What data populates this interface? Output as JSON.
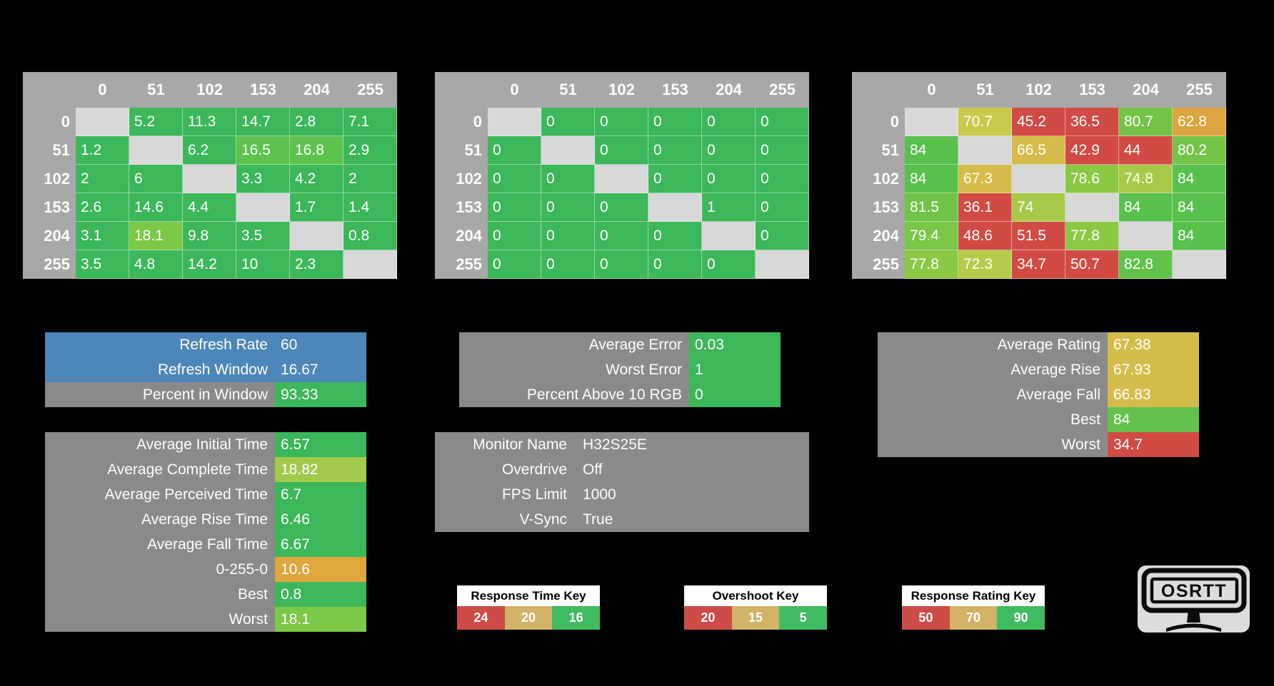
{
  "colors": {
    "background": "#000000",
    "matrix_header_bg": "#a8a8a8",
    "matrix_diagonal_bg": "#d8d8d8",
    "panel_gray": "#8a8a8a",
    "blue": "#4d86b8",
    "green": "#3cb75a",
    "red": "#d14b44",
    "dark_yellow": "#d2b266"
  },
  "chart_data": [
    {
      "type": "heatmap",
      "name": "response-time-matrix",
      "legend": "Response Time Key",
      "columns": [
        "0",
        "51",
        "102",
        "153",
        "204",
        "255"
      ],
      "rows": [
        {
          "label": "0",
          "cells": [
            null,
            {
              "v": "5.2",
              "c": "#3cb75a"
            },
            {
              "v": "11.3",
              "c": "#3cb75a"
            },
            {
              "v": "14.7",
              "c": "#3cb75a"
            },
            {
              "v": "2.8",
              "c": "#3cb75a"
            },
            {
              "v": "7.1",
              "c": "#3cb75a"
            }
          ]
        },
        {
          "label": "51",
          "cells": [
            {
              "v": "1.2",
              "c": "#3cb75a"
            },
            null,
            {
              "v": "6.2",
              "c": "#3cb75a"
            },
            {
              "v": "16.5",
              "c": "#5cc24d"
            },
            {
              "v": "16.8",
              "c": "#5cc24d"
            },
            {
              "v": "2.9",
              "c": "#3cb75a"
            }
          ]
        },
        {
          "label": "102",
          "cells": [
            {
              "v": "2",
              "c": "#3cb75a"
            },
            {
              "v": "6",
              "c": "#3cb75a"
            },
            null,
            {
              "v": "3.3",
              "c": "#3cb75a"
            },
            {
              "v": "4.2",
              "c": "#3cb75a"
            },
            {
              "v": "2",
              "c": "#3cb75a"
            }
          ]
        },
        {
          "label": "153",
          "cells": [
            {
              "v": "2.6",
              "c": "#3cb75a"
            },
            {
              "v": "14.6",
              "c": "#3cb75a"
            },
            {
              "v": "4.4",
              "c": "#3cb75a"
            },
            null,
            {
              "v": "1.7",
              "c": "#3cb75a"
            },
            {
              "v": "1.4",
              "c": "#3cb75a"
            }
          ]
        },
        {
          "label": "204",
          "cells": [
            {
              "v": "3.1",
              "c": "#3cb75a"
            },
            {
              "v": "18.1",
              "c": "#7cc847"
            },
            {
              "v": "9.8",
              "c": "#3cb75a"
            },
            {
              "v": "3.5",
              "c": "#3cb75a"
            },
            null,
            {
              "v": "0.8",
              "c": "#3cb75a"
            }
          ]
        },
        {
          "label": "255",
          "cells": [
            {
              "v": "3.5",
              "c": "#3cb75a"
            },
            {
              "v": "4.8",
              "c": "#3cb75a"
            },
            {
              "v": "14.2",
              "c": "#3cb75a"
            },
            {
              "v": "10",
              "c": "#3cb75a"
            },
            {
              "v": "2.3",
              "c": "#3cb75a"
            },
            null
          ]
        }
      ]
    },
    {
      "type": "heatmap",
      "name": "overshoot-matrix",
      "legend": "Overshoot Key",
      "columns": [
        "0",
        "51",
        "102",
        "153",
        "204",
        "255"
      ],
      "rows": [
        {
          "label": "0",
          "cells": [
            null,
            {
              "v": "0",
              "c": "#3cb75a"
            },
            {
              "v": "0",
              "c": "#3cb75a"
            },
            {
              "v": "0",
              "c": "#3cb75a"
            },
            {
              "v": "0",
              "c": "#3cb75a"
            },
            {
              "v": "0",
              "c": "#3cb75a"
            }
          ]
        },
        {
          "label": "51",
          "cells": [
            {
              "v": "0",
              "c": "#3cb75a"
            },
            null,
            {
              "v": "0",
              "c": "#3cb75a"
            },
            {
              "v": "0",
              "c": "#3cb75a"
            },
            {
              "v": "0",
              "c": "#3cb75a"
            },
            {
              "v": "0",
              "c": "#3cb75a"
            }
          ]
        },
        {
          "label": "102",
          "cells": [
            {
              "v": "0",
              "c": "#3cb75a"
            },
            {
              "v": "0",
              "c": "#3cb75a"
            },
            null,
            {
              "v": "0",
              "c": "#3cb75a"
            },
            {
              "v": "0",
              "c": "#3cb75a"
            },
            {
              "v": "0",
              "c": "#3cb75a"
            }
          ]
        },
        {
          "label": "153",
          "cells": [
            {
              "v": "0",
              "c": "#3cb75a"
            },
            {
              "v": "0",
              "c": "#3cb75a"
            },
            {
              "v": "0",
              "c": "#3cb75a"
            },
            null,
            {
              "v": "1",
              "c": "#3cb75a"
            },
            {
              "v": "0",
              "c": "#3cb75a"
            }
          ]
        },
        {
          "label": "204",
          "cells": [
            {
              "v": "0",
              "c": "#3cb75a"
            },
            {
              "v": "0",
              "c": "#3cb75a"
            },
            {
              "v": "0",
              "c": "#3cb75a"
            },
            {
              "v": "0",
              "c": "#3cb75a"
            },
            null,
            {
              "v": "0",
              "c": "#3cb75a"
            }
          ]
        },
        {
          "label": "255",
          "cells": [
            {
              "v": "0",
              "c": "#3cb75a"
            },
            {
              "v": "0",
              "c": "#3cb75a"
            },
            {
              "v": "0",
              "c": "#3cb75a"
            },
            {
              "v": "0",
              "c": "#3cb75a"
            },
            {
              "v": "0",
              "c": "#3cb75a"
            },
            null
          ]
        }
      ]
    },
    {
      "type": "heatmap",
      "name": "response-rating-matrix",
      "legend": "Response Rating Key",
      "columns": [
        "0",
        "51",
        "102",
        "153",
        "204",
        "255"
      ],
      "rows": [
        {
          "label": "0",
          "cells": [
            null,
            {
              "v": "70.7",
              "c": "#c9c94c"
            },
            {
              "v": "45.2",
              "c": "#d14b44"
            },
            {
              "v": "36.5",
              "c": "#d14b44"
            },
            {
              "v": "80.7",
              "c": "#74c447"
            },
            {
              "v": "62.8",
              "c": "#dda53f"
            }
          ]
        },
        {
          "label": "51",
          "cells": [
            {
              "v": "84",
              "c": "#58c14c"
            },
            null,
            {
              "v": "66.5",
              "c": "#d5bb49"
            },
            {
              "v": "42.9",
              "c": "#d14b44"
            },
            {
              "v": "44",
              "c": "#d14b44"
            },
            {
              "v": "80.2",
              "c": "#74c447"
            }
          ]
        },
        {
          "label": "102",
          "cells": [
            {
              "v": "84",
              "c": "#58c14c"
            },
            {
              "v": "67.3",
              "c": "#d5bb49"
            },
            null,
            {
              "v": "78.6",
              "c": "#8bc843"
            },
            {
              "v": "74.8",
              "c": "#a6ca47"
            },
            {
              "v": "84",
              "c": "#58c14c"
            }
          ]
        },
        {
          "label": "153",
          "cells": [
            {
              "v": "81.5",
              "c": "#6fc348"
            },
            {
              "v": "36.1",
              "c": "#d14b44"
            },
            {
              "v": "74",
              "c": "#a6ca47"
            },
            null,
            {
              "v": "84",
              "c": "#58c14c"
            },
            {
              "v": "84",
              "c": "#58c14c"
            }
          ]
        },
        {
          "label": "204",
          "cells": [
            {
              "v": "79.4",
              "c": "#7ac646"
            },
            {
              "v": "48.6",
              "c": "#d14b44"
            },
            {
              "v": "51.5",
              "c": "#d14b44"
            },
            {
              "v": "77.8",
              "c": "#8bc843"
            },
            null,
            {
              "v": "84",
              "c": "#58c14c"
            }
          ]
        },
        {
          "label": "255",
          "cells": [
            {
              "v": "77.8",
              "c": "#8bc843"
            },
            {
              "v": "72.3",
              "c": "#b5cb4a"
            },
            {
              "v": "34.7",
              "c": "#d14b44"
            },
            {
              "v": "50.7",
              "c": "#d14b44"
            },
            {
              "v": "82.8",
              "c": "#60c24b"
            },
            null
          ]
        }
      ]
    }
  ],
  "panels": {
    "refresh": {
      "rows": [
        {
          "label": "Refresh Rate",
          "value": "60",
          "label_bg": "#4d86b8",
          "value_bg": "#4d86b8"
        },
        {
          "label": "Refresh Window",
          "value": "16.67",
          "label_bg": "#4d86b8",
          "value_bg": "#4d86b8"
        },
        {
          "label": "Percent in Window",
          "value": "93.33",
          "label_bg": "#8a8a8a",
          "value_bg": "#3cb75a"
        }
      ]
    },
    "error": {
      "rows": [
        {
          "label": "Average Error",
          "value": "0.03",
          "label_bg": "#8a8a8a",
          "value_bg": "#3cb75a"
        },
        {
          "label": "Worst Error",
          "value": "1",
          "label_bg": "#8a8a8a",
          "value_bg": "#3cb75a"
        },
        {
          "label": "Percent Above 10 RGB",
          "value": "0",
          "label_bg": "#8a8a8a",
          "value_bg": "#3cb75a"
        }
      ]
    },
    "rating": {
      "rows": [
        {
          "label": "Average Rating",
          "value": "67.38",
          "label_bg": "#8a8a8a",
          "value_bg": "#d4bc4a"
        },
        {
          "label": "Average Rise",
          "value": "67.93",
          "label_bg": "#8a8a8a",
          "value_bg": "#d4bc4a"
        },
        {
          "label": "Average Fall",
          "value": "66.83",
          "label_bg": "#8a8a8a",
          "value_bg": "#d4bc4a"
        },
        {
          "label": "Best",
          "value": "84",
          "label_bg": "#8a8a8a",
          "value_bg": "#62c24b"
        },
        {
          "label": "Worst",
          "value": "34.7",
          "label_bg": "#8a8a8a",
          "value_bg": "#d14b44"
        }
      ]
    },
    "times": {
      "rows": [
        {
          "label": "Average Initial Time",
          "value": "6.57",
          "label_bg": "#8a8a8a",
          "value_bg": "#3cb75a"
        },
        {
          "label": "Average Complete Time",
          "value": "18.82",
          "label_bg": "#8a8a8a",
          "value_bg": "#a3c94b"
        },
        {
          "label": "Average Perceived Time",
          "value": "6.7",
          "label_bg": "#8a8a8a",
          "value_bg": "#3cb75a"
        },
        {
          "label": "Average Rise Time",
          "value": "6.46",
          "label_bg": "#8a8a8a",
          "value_bg": "#3cb75a"
        },
        {
          "label": "Average Fall Time",
          "value": "6.67",
          "label_bg": "#8a8a8a",
          "value_bg": "#3cb75a"
        },
        {
          "label": "0-255-0",
          "value": "10.6",
          "label_bg": "#8a8a8a",
          "value_bg": "#dfa73e"
        },
        {
          "label": "Best",
          "value": "0.8",
          "label_bg": "#8a8a8a",
          "value_bg": "#3cb75a"
        },
        {
          "label": "Worst",
          "value": "18.1",
          "label_bg": "#8a8a8a",
          "value_bg": "#7cc847"
        }
      ]
    },
    "monitor": {
      "rows": [
        {
          "label": "Monitor Name",
          "value": "H32S25E",
          "label_bg": null,
          "value_bg": null
        },
        {
          "label": "Overdrive",
          "value": "Off",
          "label_bg": null,
          "value_bg": null
        },
        {
          "label": "FPS Limit",
          "value": "1000",
          "label_bg": null,
          "value_bg": null
        },
        {
          "label": "V-Sync",
          "value": "True",
          "label_bg": null,
          "value_bg": null
        }
      ]
    }
  },
  "keys": [
    {
      "name": "response-time-key",
      "title": "Response Time Key",
      "cells": [
        {
          "v": "24",
          "c": "#cd4c48"
        },
        {
          "v": "20",
          "c": "#d2b266"
        },
        {
          "v": "16",
          "c": "#3fbb61"
        }
      ]
    },
    {
      "name": "overshoot-key",
      "title": "Overshoot Key",
      "cells": [
        {
          "v": "20",
          "c": "#cd4c48"
        },
        {
          "v": "15",
          "c": "#d2b266"
        },
        {
          "v": "5",
          "c": "#3fbb61"
        }
      ]
    },
    {
      "name": "response-rating-key",
      "title": "Response Rating Key",
      "cells": [
        {
          "v": "50",
          "c": "#cd4c48"
        },
        {
          "v": "70",
          "c": "#d2b266"
        },
        {
          "v": "90",
          "c": "#3fbb61"
        }
      ]
    }
  ],
  "logo": {
    "text": "OSRTT"
  }
}
